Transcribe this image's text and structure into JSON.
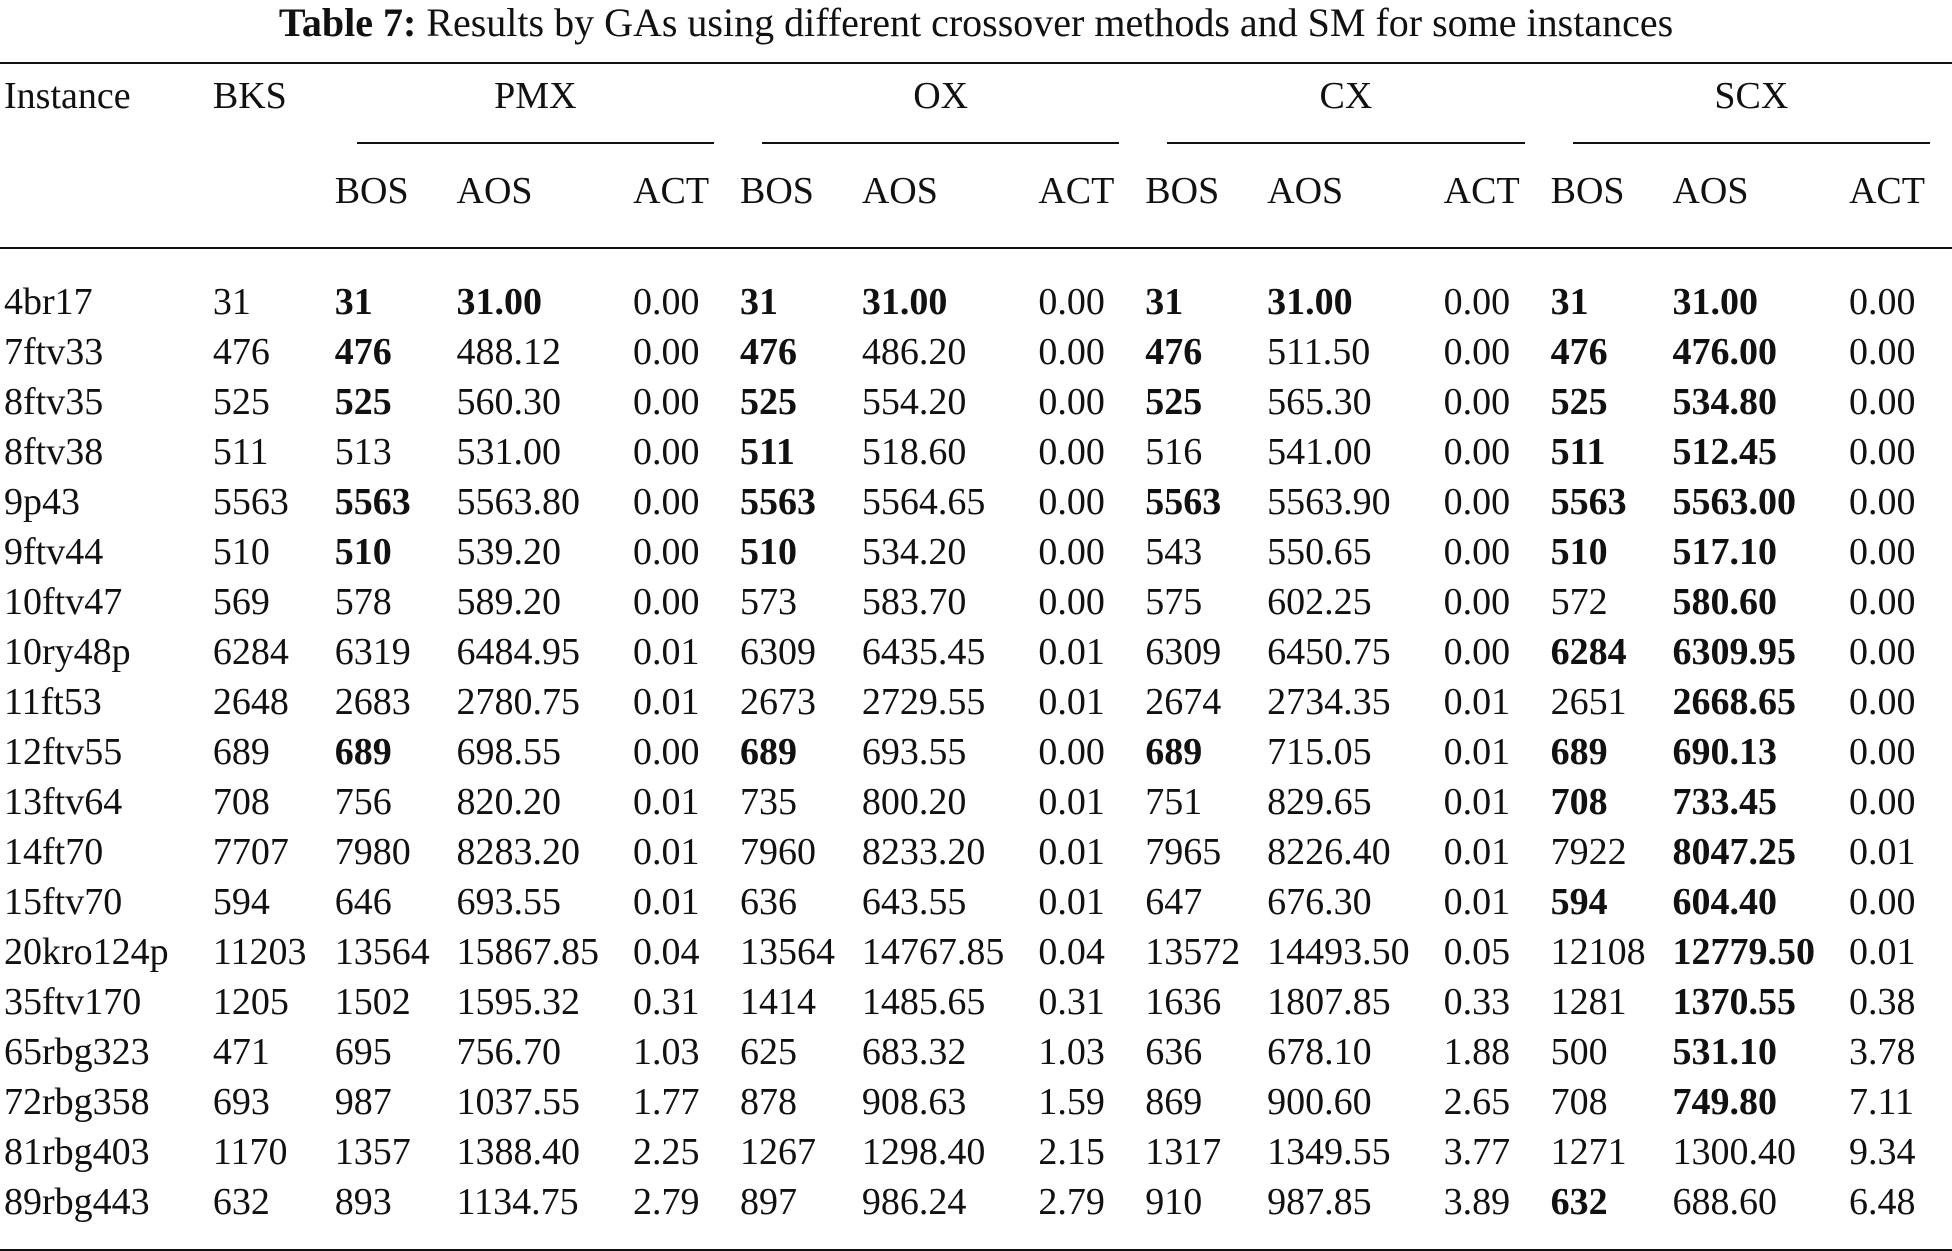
{
  "caption": {
    "label": "Table 7:",
    "text": "Results by GAs using different crossover methods and SM for some instances"
  },
  "header": {
    "instance": "Instance",
    "bks": "BKS",
    "groups": [
      "PMX",
      "OX",
      "CX",
      "SCX"
    ],
    "subcols": [
      "BOS",
      "AOS",
      "ACT"
    ]
  },
  "rows": [
    {
      "instance": "4br17",
      "bks": "31",
      "pmx": {
        "bos": "31",
        "aos": "31.00",
        "act": "0.00",
        "bos_bold": true,
        "aos_bold": true
      },
      "ox": {
        "bos": "31",
        "aos": "31.00",
        "act": "0.00",
        "bos_bold": true,
        "aos_bold": true
      },
      "cx": {
        "bos": "31",
        "aos": "31.00",
        "act": "0.00",
        "bos_bold": true,
        "aos_bold": true
      },
      "scx": {
        "bos": "31",
        "aos": "31.00",
        "act": "0.00",
        "bos_bold": true,
        "aos_bold": true
      }
    },
    {
      "instance": "7ftv33",
      "bks": "476",
      "pmx": {
        "bos": "476",
        "aos": "488.12",
        "act": "0.00",
        "bos_bold": true,
        "aos_bold": false
      },
      "ox": {
        "bos": "476",
        "aos": "486.20",
        "act": "0.00",
        "bos_bold": true,
        "aos_bold": false
      },
      "cx": {
        "bos": "476",
        "aos": "511.50",
        "act": "0.00",
        "bos_bold": true,
        "aos_bold": false
      },
      "scx": {
        "bos": "476",
        "aos": "476.00",
        "act": "0.00",
        "bos_bold": true,
        "aos_bold": true
      }
    },
    {
      "instance": "8ftv35",
      "bks": "525",
      "pmx": {
        "bos": "525",
        "aos": "560.30",
        "act": "0.00",
        "bos_bold": true,
        "aos_bold": false
      },
      "ox": {
        "bos": "525",
        "aos": "554.20",
        "act": "0.00",
        "bos_bold": true,
        "aos_bold": false
      },
      "cx": {
        "bos": "525",
        "aos": "565.30",
        "act": "0.00",
        "bos_bold": true,
        "aos_bold": false
      },
      "scx": {
        "bos": "525",
        "aos": "534.80",
        "act": "0.00",
        "bos_bold": true,
        "aos_bold": true
      }
    },
    {
      "instance": "8ftv38",
      "bks": "511",
      "pmx": {
        "bos": "513",
        "aos": "531.00",
        "act": "0.00",
        "bos_bold": false,
        "aos_bold": false
      },
      "ox": {
        "bos": "511",
        "aos": "518.60",
        "act": "0.00",
        "bos_bold": true,
        "aos_bold": false
      },
      "cx": {
        "bos": "516",
        "aos": "541.00",
        "act": "0.00",
        "bos_bold": false,
        "aos_bold": false
      },
      "scx": {
        "bos": "511",
        "aos": "512.45",
        "act": "0.00",
        "bos_bold": true,
        "aos_bold": true
      }
    },
    {
      "instance": "9p43",
      "bks": "5563",
      "pmx": {
        "bos": "5563",
        "aos": "5563.80",
        "act": "0.00",
        "bos_bold": true,
        "aos_bold": false
      },
      "ox": {
        "bos": "5563",
        "aos": "5564.65",
        "act": "0.00",
        "bos_bold": true,
        "aos_bold": false
      },
      "cx": {
        "bos": "5563",
        "aos": "5563.90",
        "act": "0.00",
        "bos_bold": true,
        "aos_bold": false
      },
      "scx": {
        "bos": "5563",
        "aos": "5563.00",
        "act": "0.00",
        "bos_bold": true,
        "aos_bold": true
      }
    },
    {
      "instance": "9ftv44",
      "bks": "510",
      "pmx": {
        "bos": "510",
        "aos": "539.20",
        "act": "0.00",
        "bos_bold": true,
        "aos_bold": false
      },
      "ox": {
        "bos": "510",
        "aos": "534.20",
        "act": "0.00",
        "bos_bold": true,
        "aos_bold": false
      },
      "cx": {
        "bos": "543",
        "aos": "550.65",
        "act": "0.00",
        "bos_bold": false,
        "aos_bold": false
      },
      "scx": {
        "bos": "510",
        "aos": "517.10",
        "act": "0.00",
        "bos_bold": true,
        "aos_bold": true
      }
    },
    {
      "instance": "10ftv47",
      "bks": "569",
      "pmx": {
        "bos": "578",
        "aos": "589.20",
        "act": "0.00",
        "bos_bold": false,
        "aos_bold": false
      },
      "ox": {
        "bos": "573",
        "aos": "583.70",
        "act": "0.00",
        "bos_bold": false,
        "aos_bold": false
      },
      "cx": {
        "bos": "575",
        "aos": "602.25",
        "act": "0.00",
        "bos_bold": false,
        "aos_bold": false
      },
      "scx": {
        "bos": "572",
        "aos": "580.60",
        "act": "0.00",
        "bos_bold": false,
        "aos_bold": true
      }
    },
    {
      "instance": "10ry48p",
      "bks": "6284",
      "pmx": {
        "bos": "6319",
        "aos": "6484.95",
        "act": "0.01",
        "bos_bold": false,
        "aos_bold": false
      },
      "ox": {
        "bos": "6309",
        "aos": "6435.45",
        "act": "0.01",
        "bos_bold": false,
        "aos_bold": false
      },
      "cx": {
        "bos": "6309",
        "aos": "6450.75",
        "act": "0.00",
        "bos_bold": false,
        "aos_bold": false
      },
      "scx": {
        "bos": "6284",
        "aos": "6309.95",
        "act": "0.00",
        "bos_bold": true,
        "aos_bold": true
      }
    },
    {
      "instance": "11ft53",
      "bks": "2648",
      "pmx": {
        "bos": "2683",
        "aos": "2780.75",
        "act": "0.01",
        "bos_bold": false,
        "aos_bold": false
      },
      "ox": {
        "bos": "2673",
        "aos": "2729.55",
        "act": "0.01",
        "bos_bold": false,
        "aos_bold": false
      },
      "cx": {
        "bos": "2674",
        "aos": "2734.35",
        "act": "0.01",
        "bos_bold": false,
        "aos_bold": false
      },
      "scx": {
        "bos": "2651",
        "aos": "2668.65",
        "act": "0.00",
        "bos_bold": false,
        "aos_bold": true
      }
    },
    {
      "instance": "12ftv55",
      "bks": "689",
      "pmx": {
        "bos": "689",
        "aos": "698.55",
        "act": "0.00",
        "bos_bold": true,
        "aos_bold": false
      },
      "ox": {
        "bos": "689",
        "aos": "693.55",
        "act": "0.00",
        "bos_bold": true,
        "aos_bold": false
      },
      "cx": {
        "bos": "689",
        "aos": "715.05",
        "act": "0.01",
        "bos_bold": true,
        "aos_bold": false
      },
      "scx": {
        "bos": "689",
        "aos": "690.13",
        "act": "0.00",
        "bos_bold": true,
        "aos_bold": true
      }
    },
    {
      "instance": "13ftv64",
      "bks": "708",
      "pmx": {
        "bos": "756",
        "aos": "820.20",
        "act": "0.01",
        "bos_bold": false,
        "aos_bold": false
      },
      "ox": {
        "bos": "735",
        "aos": "800.20",
        "act": "0.01",
        "bos_bold": false,
        "aos_bold": false
      },
      "cx": {
        "bos": "751",
        "aos": "829.65",
        "act": "0.01",
        "bos_bold": false,
        "aos_bold": false
      },
      "scx": {
        "bos": "708",
        "aos": "733.45",
        "act": "0.00",
        "bos_bold": true,
        "aos_bold": true
      }
    },
    {
      "instance": "14ft70",
      "bks": "7707",
      "pmx": {
        "bos": "7980",
        "aos": "8283.20",
        "act": "0.01",
        "bos_bold": false,
        "aos_bold": false
      },
      "ox": {
        "bos": "7960",
        "aos": "8233.20",
        "act": "0.01",
        "bos_bold": false,
        "aos_bold": false
      },
      "cx": {
        "bos": "7965",
        "aos": "8226.40",
        "act": "0.01",
        "bos_bold": false,
        "aos_bold": false
      },
      "scx": {
        "bos": "7922",
        "aos": "8047.25",
        "act": "0.01",
        "bos_bold": false,
        "aos_bold": true
      }
    },
    {
      "instance": "15ftv70",
      "bks": "594",
      "pmx": {
        "bos": "646",
        "aos": "693.55",
        "act": "0.01",
        "bos_bold": false,
        "aos_bold": false
      },
      "ox": {
        "bos": "636",
        "aos": "643.55",
        "act": "0.01",
        "bos_bold": false,
        "aos_bold": false
      },
      "cx": {
        "bos": "647",
        "aos": "676.30",
        "act": "0.01",
        "bos_bold": false,
        "aos_bold": false
      },
      "scx": {
        "bos": "594",
        "aos": "604.40",
        "act": "0.00",
        "bos_bold": true,
        "aos_bold": true
      }
    },
    {
      "instance": "20kro124p",
      "bks": "11203",
      "pmx": {
        "bos": "13564",
        "aos": "15867.85",
        "act": "0.04",
        "bos_bold": false,
        "aos_bold": false
      },
      "ox": {
        "bos": "13564",
        "aos": "14767.85",
        "act": "0.04",
        "bos_bold": false,
        "aos_bold": false
      },
      "cx": {
        "bos": "13572",
        "aos": "14493.50",
        "act": "0.05",
        "bos_bold": false,
        "aos_bold": false
      },
      "scx": {
        "bos": "12108",
        "aos": "12779.50",
        "act": "0.01",
        "bos_bold": false,
        "aos_bold": true
      }
    },
    {
      "instance": "35ftv170",
      "bks": "1205",
      "pmx": {
        "bos": "1502",
        "aos": "1595.32",
        "act": "0.31",
        "bos_bold": false,
        "aos_bold": false
      },
      "ox": {
        "bos": "1414",
        "aos": "1485.65",
        "act": "0.31",
        "bos_bold": false,
        "aos_bold": false
      },
      "cx": {
        "bos": "1636",
        "aos": "1807.85",
        "act": "0.33",
        "bos_bold": false,
        "aos_bold": false
      },
      "scx": {
        "bos": "1281",
        "aos": "1370.55",
        "act": "0.38",
        "bos_bold": false,
        "aos_bold": true
      }
    },
    {
      "instance": "65rbg323",
      "bks": "471",
      "pmx": {
        "bos": "695",
        "aos": "756.70",
        "act": "1.03",
        "bos_bold": false,
        "aos_bold": false
      },
      "ox": {
        "bos": "625",
        "aos": "683.32",
        "act": "1.03",
        "bos_bold": false,
        "aos_bold": false
      },
      "cx": {
        "bos": "636",
        "aos": "678.10",
        "act": "1.88",
        "bos_bold": false,
        "aos_bold": false
      },
      "scx": {
        "bos": "500",
        "aos": "531.10",
        "act": "3.78",
        "bos_bold": false,
        "aos_bold": true
      }
    },
    {
      "instance": "72rbg358",
      "bks": "693",
      "pmx": {
        "bos": "987",
        "aos": "1037.55",
        "act": "1.77",
        "bos_bold": false,
        "aos_bold": false
      },
      "ox": {
        "bos": "878",
        "aos": "908.63",
        "act": "1.59",
        "bos_bold": false,
        "aos_bold": false
      },
      "cx": {
        "bos": "869",
        "aos": "900.60",
        "act": "2.65",
        "bos_bold": false,
        "aos_bold": false
      },
      "scx": {
        "bos": "708",
        "aos": "749.80",
        "act": "7.11",
        "bos_bold": false,
        "aos_bold": true
      }
    },
    {
      "instance": "81rbg403",
      "bks": "1170",
      "pmx": {
        "bos": "1357",
        "aos": "1388.40",
        "act": "2.25",
        "bos_bold": false,
        "aos_bold": false
      },
      "ox": {
        "bos": "1267",
        "aos": "1298.40",
        "act": "2.15",
        "bos_bold": false,
        "aos_bold": false
      },
      "cx": {
        "bos": "1317",
        "aos": "1349.55",
        "act": "3.77",
        "bos_bold": false,
        "aos_bold": false
      },
      "scx": {
        "bos": "1271",
        "aos": "1300.40",
        "act": "9.34",
        "bos_bold": false,
        "aos_bold": false
      }
    },
    {
      "instance": "89rbg443",
      "bks": "632",
      "pmx": {
        "bos": "893",
        "aos": "1134.75",
        "act": "2.79",
        "bos_bold": false,
        "aos_bold": false
      },
      "ox": {
        "bos": "897",
        "aos": "986.24",
        "act": "2.79",
        "bos_bold": false,
        "aos_bold": false
      },
      "cx": {
        "bos": "910",
        "aos": "987.85",
        "act": "3.89",
        "bos_bold": false,
        "aos_bold": false
      },
      "scx": {
        "bos": "632",
        "aos": "688.60",
        "act": "6.48",
        "bos_bold": true,
        "aos_bold": false
      }
    }
  ]
}
